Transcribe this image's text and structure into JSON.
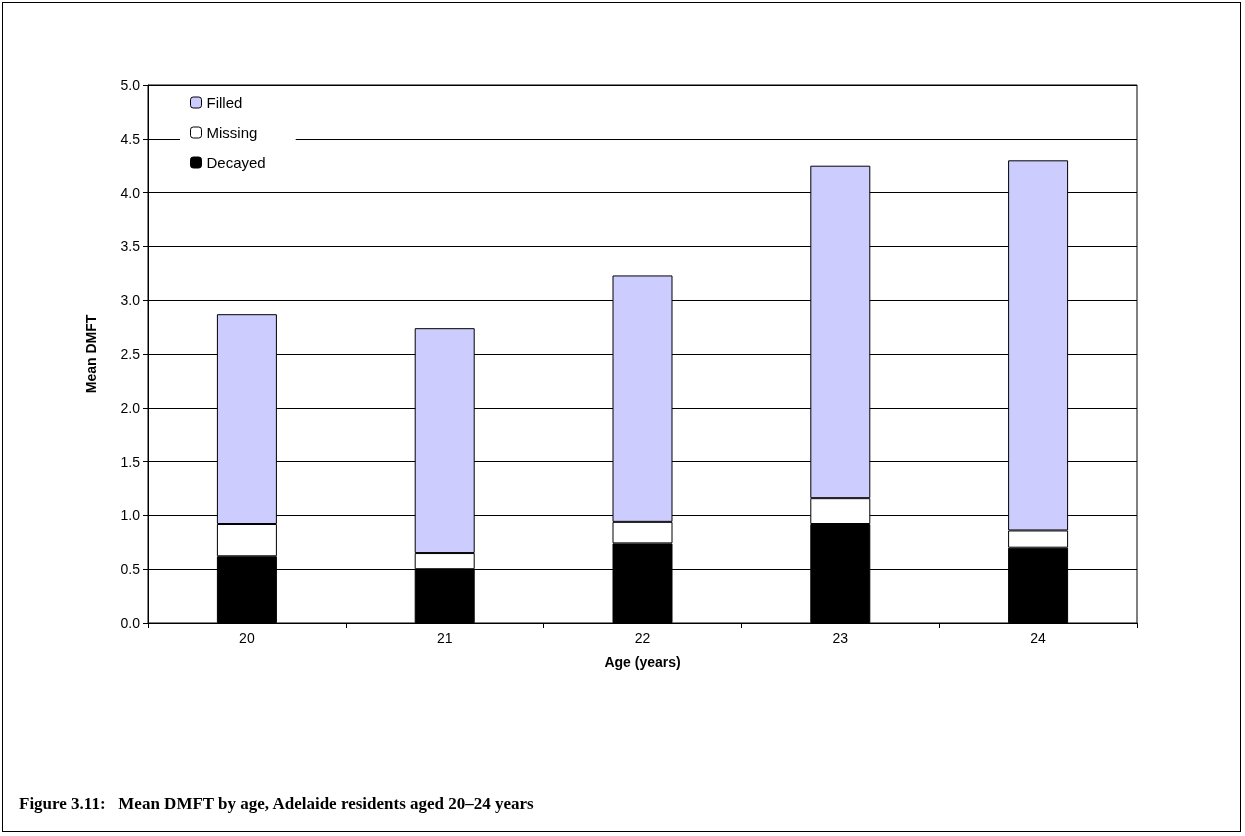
{
  "chart_data": {
    "type": "bar",
    "title": "Figure 3.11:   Mean DMFT by age, Adelaide residents aged 20–24 years",
    "xlabel": "Age (years)",
    "ylabel": "Mean DMFT",
    "categories": [
      "20",
      "21",
      "22",
      "23",
      "24"
    ],
    "stacked": true,
    "series": [
      {
        "name": "Decayed",
        "color": "#000000",
        "values": [
          0.62,
          0.5,
          0.74,
          0.92,
          0.7
        ]
      },
      {
        "name": "Missing",
        "color": "#ffffff",
        "values": [
          0.3,
          0.15,
          0.2,
          0.24,
          0.16
        ]
      },
      {
        "name": "Filled",
        "color": "#ccccff",
        "values": [
          1.95,
          2.09,
          2.29,
          3.09,
          3.44
        ]
      }
    ],
    "ylim": [
      0,
      5
    ],
    "yticks": [
      {
        "value": 0,
        "label": "0.0"
      },
      {
        "value": 0.5,
        "label": "0.5"
      },
      {
        "value": 1,
        "label": "1.0"
      },
      {
        "value": 1.5,
        "label": "1.5"
      },
      {
        "value": 2,
        "label": "2.0"
      },
      {
        "value": 2.5,
        "label": "2.5"
      },
      {
        "value": 3,
        "label": "3.0"
      },
      {
        "value": 3.5,
        "label": "3.5"
      },
      {
        "value": 4,
        "label": "4.0"
      },
      {
        "value": 4.5,
        "label": "4.5"
      },
      {
        "value": 5,
        "label": "5.0"
      }
    ],
    "grid": "y",
    "legend": "top left"
  }
}
